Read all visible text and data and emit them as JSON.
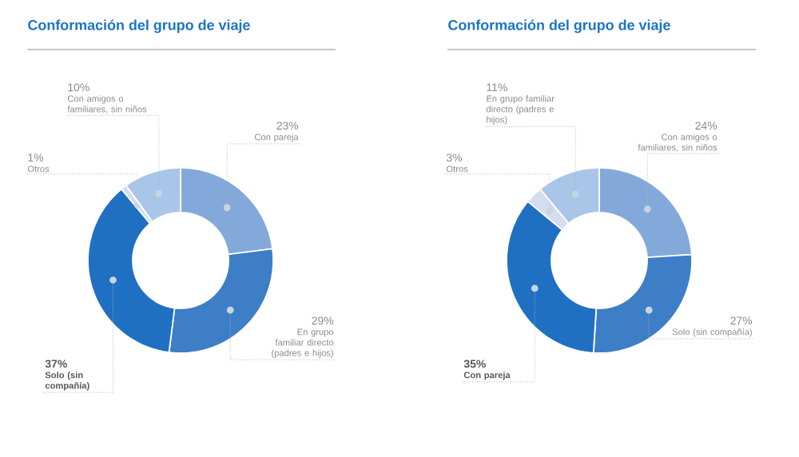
{
  "chart_data": [
    {
      "type": "donut",
      "title": "Conformación del grupo de viaje",
      "categories": [
        "Con pareja",
        "En grupo familiar directo (padres e hijos)",
        "Solo (sin compañía)",
        "Otros",
        "Con amigos o familiares, sin niños"
      ],
      "values": [
        23,
        29,
        37,
        1,
        10
      ],
      "value_labels": [
        "23%",
        "29%",
        "37%",
        "1%",
        "10%"
      ],
      "colors": [
        "#82a9da",
        "#3d7ec6",
        "#1f6fc2",
        "#d3dded",
        "#a9c5e8"
      ]
    },
    {
      "type": "donut",
      "title": "Conformación del grupo de viaje",
      "categories": [
        "Con amigos o familiares, sin niños",
        "Solo (sin compañía)",
        "Con pareja",
        "Otros",
        "En grupo familiar directo (padres e hijos)"
      ],
      "values": [
        24,
        27,
        35,
        3,
        11
      ],
      "value_labels": [
        "24%",
        "27%",
        "35%",
        "3%",
        "11%"
      ],
      "colors": [
        "#82a9da",
        "#3d7ec6",
        "#1f6fc2",
        "#d3dded",
        "#a9c5e8"
      ]
    }
  ]
}
